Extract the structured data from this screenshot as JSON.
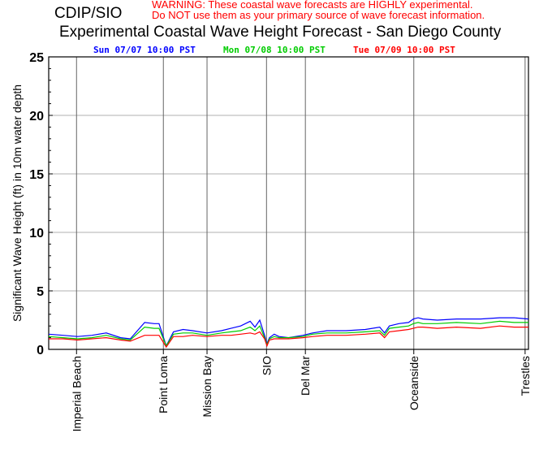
{
  "header": {
    "org": "CDIP/SIO",
    "warning_line1": "WARNING:  These coastal wave forecasts are HIGHLY experimental.",
    "warning_line2": "Do NOT use them as your primary source of wave forecast information.",
    "title": "Experimental Coastal Wave Height Forecast - San Diego County"
  },
  "chart_data": {
    "type": "line",
    "title": "Experimental Coastal Wave Height Forecast - San Diego County",
    "ylabel": "Significant Wave Height (ft) in 10m water depth",
    "xlabel": "",
    "ylim": [
      0,
      25
    ],
    "xlim": [
      0,
      100
    ],
    "yticks": [
      "0",
      "5",
      "10",
      "15",
      "20",
      "25"
    ],
    "grid": true,
    "legend_placement": "top",
    "locations": [
      {
        "name": "Imperial Beach",
        "x": 5.8
      },
      {
        "name": "Point Loma",
        "x": 23.9
      },
      {
        "name": "Mission Bay",
        "x": 33.0
      },
      {
        "name": "SIO",
        "x": 45.4
      },
      {
        "name": "Del Mar",
        "x": 53.5
      },
      {
        "name": "Oceanside",
        "x": 76.1
      },
      {
        "name": "Trestles",
        "x": 99.3
      }
    ],
    "x": [
      0,
      3,
      6,
      9,
      12,
      15,
      17,
      20,
      22,
      23,
      24.5,
      26,
      28,
      30,
      33,
      36,
      38,
      40,
      42,
      43,
      44,
      45,
      45.5,
      46,
      47,
      48,
      50,
      53,
      55,
      58,
      62,
      66,
      69,
      70,
      71,
      73,
      75,
      76,
      77,
      78,
      81,
      85,
      90,
      94,
      97,
      100
    ],
    "series": [
      {
        "name": "Sun 07/07 10:00 PST",
        "color": "#0000ff",
        "values": [
          1.3,
          1.2,
          1.1,
          1.2,
          1.4,
          1.0,
          0.9,
          2.3,
          2.2,
          2.2,
          0.3,
          1.5,
          1.7,
          1.6,
          1.4,
          1.6,
          1.8,
          2.0,
          2.4,
          1.9,
          2.5,
          1.2,
          0.5,
          1.0,
          1.3,
          1.1,
          1.0,
          1.2,
          1.4,
          1.6,
          1.6,
          1.7,
          1.9,
          1.4,
          2.0,
          2.2,
          2.3,
          2.6,
          2.7,
          2.6,
          2.5,
          2.6,
          2.6,
          2.7,
          2.7,
          2.6
        ]
      },
      {
        "name": "Mon 07/08 10:00 PST",
        "color": "#00cc00",
        "values": [
          1.1,
          1.0,
          0.9,
          1.0,
          1.2,
          0.9,
          0.8,
          1.9,
          1.8,
          1.8,
          0.3,
          1.3,
          1.4,
          1.4,
          1.2,
          1.4,
          1.5,
          1.6,
          1.9,
          1.6,
          2.0,
          1.0,
          0.4,
          0.9,
          1.1,
          1.0,
          1.0,
          1.1,
          1.3,
          1.4,
          1.4,
          1.5,
          1.6,
          1.2,
          1.8,
          1.9,
          2.0,
          2.2,
          2.3,
          2.2,
          2.2,
          2.3,
          2.2,
          2.4,
          2.3,
          2.3
        ]
      },
      {
        "name": "Tue 07/09 10:00 PST",
        "color": "#ff0000",
        "values": [
          0.9,
          0.9,
          0.8,
          0.9,
          1.0,
          0.8,
          0.7,
          1.2,
          1.2,
          1.2,
          0.2,
          1.1,
          1.1,
          1.2,
          1.1,
          1.2,
          1.2,
          1.3,
          1.4,
          1.3,
          1.5,
          0.9,
          0.3,
          0.8,
          0.9,
          0.9,
          0.9,
          1.0,
          1.1,
          1.2,
          1.2,
          1.3,
          1.4,
          1.0,
          1.5,
          1.6,
          1.7,
          1.8,
          1.9,
          1.9,
          1.8,
          1.9,
          1.8,
          2.0,
          1.9,
          1.9
        ]
      }
    ]
  }
}
